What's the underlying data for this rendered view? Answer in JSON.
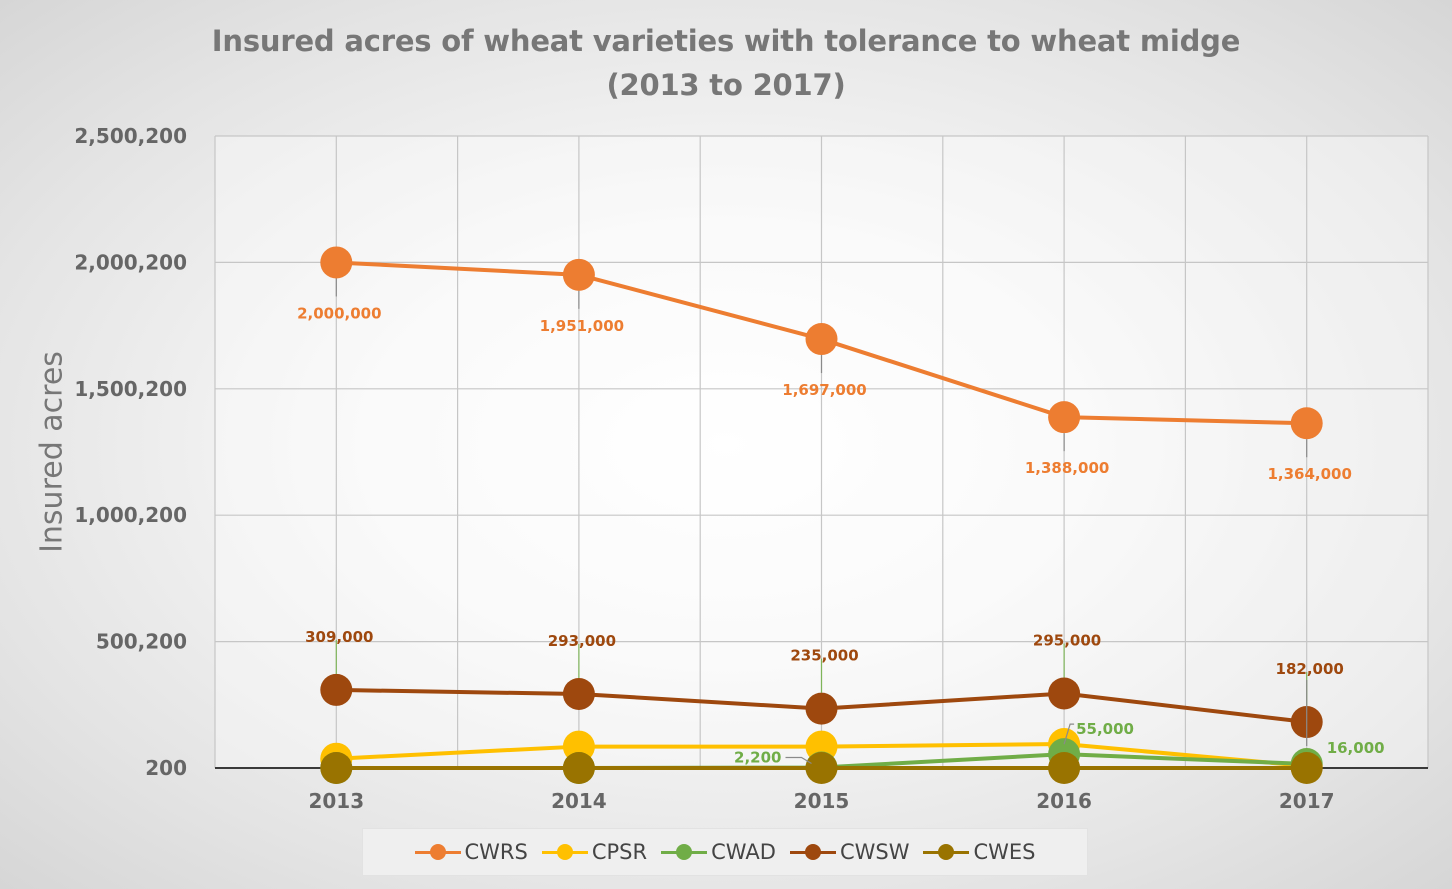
{
  "chart_data": {
    "type": "line",
    "title_line1": "Insured acres of wheat varieties with tolerance to wheat midge",
    "title_line2": "(2013 to 2017)",
    "ylabel": "Insured acres",
    "xlabel": "",
    "categories": [
      "2013",
      "2014",
      "2015",
      "2016",
      "2017"
    ],
    "y_ticks": [
      "2,500,200",
      "2,000,200",
      "1,500,200",
      "1,000,200",
      "500,200",
      "200"
    ],
    "ylim": [
      200,
      2500200
    ],
    "grid": true,
    "legend_position": "bottom",
    "series": [
      {
        "name": "CWRS",
        "color": "#ED7D31",
        "values": [
          2000000,
          1951000,
          1697000,
          1388000,
          1364000
        ],
        "labels": [
          "2,000,000",
          "1,951,000",
          "1,697,000",
          "1,388,000",
          "1,364,000"
        ]
      },
      {
        "name": "CPSR",
        "color": "#FFC000",
        "values": [
          37000,
          85000,
          85000,
          95000,
          8000
        ],
        "labels": [
          "",
          "",
          "",
          "",
          ""
        ]
      },
      {
        "name": "CWAD",
        "color": "#70AD47",
        "values": [
          200,
          200,
          2200,
          55000,
          16000
        ],
        "labels": [
          "",
          "",
          "2,200",
          "55,000",
          "16,000"
        ]
      },
      {
        "name": "CWSW",
        "color": "#9E480E",
        "values": [
          309000,
          293000,
          235000,
          295000,
          182000
        ],
        "labels": [
          "309,000",
          "293,000",
          "235,000",
          "295,000",
          "182,000"
        ]
      },
      {
        "name": "CWES",
        "color": "#997300",
        "values": [
          200,
          200,
          200,
          200,
          200
        ],
        "labels": [
          "",
          "",
          "",
          "",
          ""
        ]
      }
    ]
  }
}
